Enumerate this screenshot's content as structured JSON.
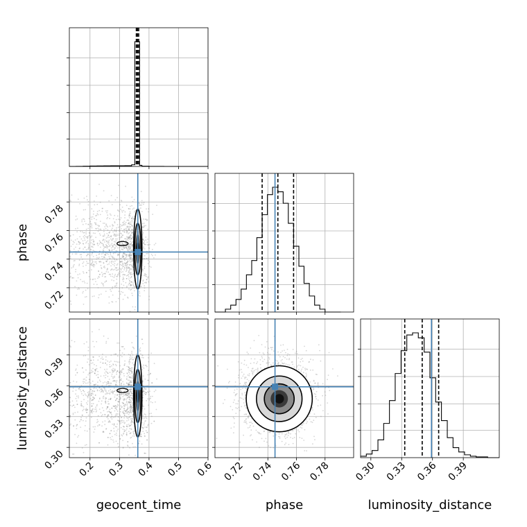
{
  "chart_data": {
    "type": "corner",
    "parameters": [
      "geocent_time",
      "phase",
      "luminosity_distance"
    ],
    "axis_labels": {
      "geocent_time": "geocent_time",
      "phase": "phase",
      "luminosity_distance": "luminosity_distance"
    },
    "ranges": {
      "geocent_time": [
        0.13,
        0.6
      ],
      "phase": [
        0.703,
        0.8
      ],
      "luminosity_distance": [
        0.29,
        0.425
      ]
    },
    "ticks": {
      "geocent_time": [
        0.2,
        0.3,
        0.4,
        0.5,
        0.6
      ],
      "phase": [
        0.72,
        0.74,
        0.76,
        0.78
      ],
      "luminosity_distance": [
        0.3,
        0.33,
        0.36,
        0.39
      ]
    },
    "tick_labels": {
      "geocent_time": [
        "0.2",
        "0.3",
        "0.4",
        "0.5",
        "0.6"
      ],
      "phase": [
        "0.72",
        "0.74",
        "0.76",
        "0.78"
      ],
      "luminosity_distance": [
        "0.30",
        "0.33",
        "0.36",
        "0.39"
      ]
    },
    "truths": {
      "geocent_time": 0.362,
      "phase": 0.745,
      "luminosity_distance": 0.359
    },
    "quantiles": {
      "geocent_time": [
        0.357,
        0.361,
        0.365
      ],
      "phase": [
        0.736,
        0.747,
        0.758
      ],
      "luminosity_distance": [
        0.333,
        0.35,
        0.366
      ]
    },
    "histograms": {
      "geocent_time": {
        "edges": [
          0.13,
          0.153,
          0.177,
          0.2,
          0.224,
          0.247,
          0.271,
          0.294,
          0.318,
          0.341,
          0.352,
          0.357,
          0.368,
          0.376,
          0.4,
          0.45,
          0.6
        ],
        "counts": [
          0,
          3,
          8,
          13,
          18,
          21,
          23,
          25,
          28,
          60,
          4550,
          4550,
          40,
          8,
          3,
          0
        ]
      },
      "phase": {
        "edges": [
          0.703,
          0.7067,
          0.7103,
          0.714,
          0.7177,
          0.7213,
          0.725,
          0.7287,
          0.7323,
          0.736,
          0.7397,
          0.7433,
          0.747,
          0.7507,
          0.7543,
          0.758,
          0.7617,
          0.7653,
          0.769,
          0.7727,
          0.7763,
          0.78,
          0.7837,
          0.7873,
          0.791
        ],
        "counts": [
          0,
          0,
          5,
          12,
          22,
          40,
          65,
          90,
          130,
          170,
          205,
          218,
          210,
          190,
          155,
          115,
          80,
          50,
          28,
          12,
          5,
          0,
          0,
          0
        ]
      },
      "luminosity_distance": {
        "edges": [
          0.29,
          0.2956,
          0.3012,
          0.3069,
          0.3125,
          0.3181,
          0.3237,
          0.3294,
          0.335,
          0.3406,
          0.3462,
          0.3519,
          0.3575,
          0.3631,
          0.3687,
          0.3744,
          0.38,
          0.3856,
          0.3912,
          0.3969,
          0.4025,
          0.4081,
          0.4137,
          0.4194,
          0.425
        ],
        "counts": [
          2,
          5,
          10,
          25,
          48,
          80,
          118,
          150,
          172,
          175,
          168,
          148,
          112,
          78,
          52,
          28,
          14,
          8,
          4,
          2,
          1,
          1,
          0,
          0
        ]
      }
    },
    "density_2d": {
      "geocent_time_phase": {
        "center": [
          0.362,
          0.747
        ],
        "width": [
          0.008,
          0.014
        ]
      },
      "geocent_time_luminosity_distance": {
        "center": [
          0.362,
          0.35
        ],
        "width": [
          0.008,
          0.02
        ]
      },
      "phase_luminosity_distance": {
        "center": [
          0.747,
          0.35
        ],
        "width": [
          0.011,
          0.017
        ]
      }
    },
    "grid": true,
    "colors": {
      "truth": "#4682b4",
      "contour": "#000000",
      "hist": "#000000",
      "quantile": "#000000",
      "scatter": "#888888"
    }
  }
}
